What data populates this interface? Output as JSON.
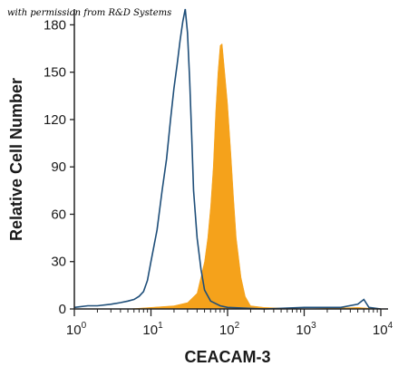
{
  "watermark": "with permission from R&D Systems",
  "chart_data": {
    "type": "area",
    "xlabel": "CEACAM-3",
    "ylabel": "Relative Cell Number",
    "x_scale": "log",
    "xlim": [
      1,
      10000
    ],
    "ylim": [
      0,
      190
    ],
    "x_ticks": [
      {
        "base": "10",
        "exp": "0",
        "value": 1
      },
      {
        "base": "10",
        "exp": "1",
        "value": 10
      },
      {
        "base": "10",
        "exp": "2",
        "value": 100
      },
      {
        "base": "10",
        "exp": "3",
        "value": 1000
      },
      {
        "base": "10",
        "exp": "4",
        "value": 10000
      }
    ],
    "y_ticks": [
      "0",
      "30",
      "60",
      "90",
      "120",
      "150",
      "180"
    ],
    "grid": false,
    "series": [
      {
        "kind": "filled",
        "color": "#f5a21b",
        "points": [
          [
            1,
            0
          ],
          [
            5,
            0
          ],
          [
            10,
            1
          ],
          [
            20,
            2
          ],
          [
            30,
            4
          ],
          [
            40,
            10
          ],
          [
            50,
            30
          ],
          [
            55,
            45
          ],
          [
            60,
            65
          ],
          [
            65,
            90
          ],
          [
            70,
            125
          ],
          [
            75,
            150
          ],
          [
            80,
            167
          ],
          [
            85,
            168
          ],
          [
            90,
            155
          ],
          [
            100,
            130
          ],
          [
            110,
            100
          ],
          [
            120,
            70
          ],
          [
            130,
            45
          ],
          [
            150,
            20
          ],
          [
            170,
            8
          ],
          [
            200,
            2
          ],
          [
            300,
            1
          ],
          [
            1000,
            0
          ],
          [
            5000,
            1
          ],
          [
            10000,
            0
          ]
        ]
      },
      {
        "kind": "outline",
        "color": "#1e4e79",
        "points": [
          [
            1,
            1
          ],
          [
            1.5,
            2
          ],
          [
            2,
            2
          ],
          [
            3,
            3
          ],
          [
            4,
            4
          ],
          [
            5,
            5
          ],
          [
            6,
            6
          ],
          [
            7,
            8
          ],
          [
            8,
            11
          ],
          [
            9,
            18
          ],
          [
            10,
            30
          ],
          [
            12,
            50
          ],
          [
            14,
            75
          ],
          [
            16,
            95
          ],
          [
            18,
            120
          ],
          [
            20,
            140
          ],
          [
            22,
            155
          ],
          [
            24,
            170
          ],
          [
            26,
            182
          ],
          [
            28,
            190
          ],
          [
            30,
            175
          ],
          [
            32,
            145
          ],
          [
            34,
            110
          ],
          [
            36,
            75
          ],
          [
            40,
            45
          ],
          [
            45,
            25
          ],
          [
            50,
            12
          ],
          [
            60,
            5
          ],
          [
            80,
            2
          ],
          [
            100,
            1
          ],
          [
            300,
            0
          ],
          [
            1000,
            1
          ],
          [
            3000,
            1
          ],
          [
            5000,
            3
          ],
          [
            6000,
            6
          ],
          [
            7000,
            1
          ],
          [
            10000,
            0
          ]
        ]
      }
    ]
  }
}
